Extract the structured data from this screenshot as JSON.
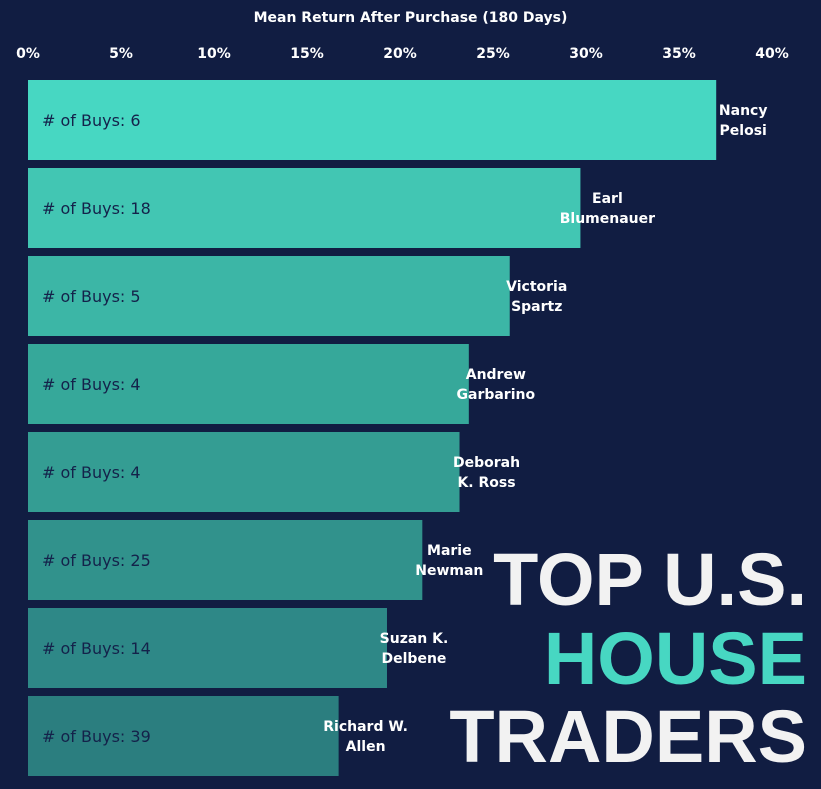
{
  "chart_data": {
    "type": "bar",
    "orientation": "horizontal",
    "xlabel": "Mean Return After Purchase (180 Days)",
    "xlim": [
      0,
      40
    ],
    "x_tick_labels": [
      "0%",
      "5%",
      "10%",
      "15%",
      "20%",
      "25%",
      "30%",
      "35%",
      "40%"
    ],
    "x_tick_values": [
      0,
      5,
      10,
      15,
      20,
      25,
      30,
      35,
      40
    ],
    "axis_position": "top",
    "grid": false,
    "categories": [
      [
        "Nancy",
        "Pelosi"
      ],
      [
        "Earl",
        "Blumenauer"
      ],
      [
        "Victoria",
        "Spartz"
      ],
      [
        "Andrew",
        "Garbarino"
      ],
      [
        "Deborah",
        "K. Ross"
      ],
      [
        "Marie",
        "Newman"
      ],
      [
        "Suzan K.",
        "Delbene"
      ],
      [
        "Richard W.",
        "Allen"
      ]
    ],
    "values": [
      37.0,
      29.7,
      25.9,
      23.7,
      23.2,
      21.2,
      19.3,
      16.7
    ],
    "bar_labels": [
      "# of Buys: 6",
      "# of Buys: 18",
      "# of Buys: 5",
      "# of Buys: 4",
      "# of Buys: 4",
      "# of Buys: 25",
      "# of Buys: 14",
      "# of Buys: 39"
    ],
    "bar_colors": [
      "#47d7c2",
      "#42c6b3",
      "#3cb6a6",
      "#36a89a",
      "#349d93",
      "#31928c",
      "#2e8887",
      "#2b7e7f"
    ],
    "background_color": "#111d42"
  },
  "headline": {
    "line1": "TOP U.S.",
    "line2": "HOUSE",
    "line3": "TRADERS",
    "accent_color": "#47d7c2",
    "text_color": "#f2f2f2"
  }
}
